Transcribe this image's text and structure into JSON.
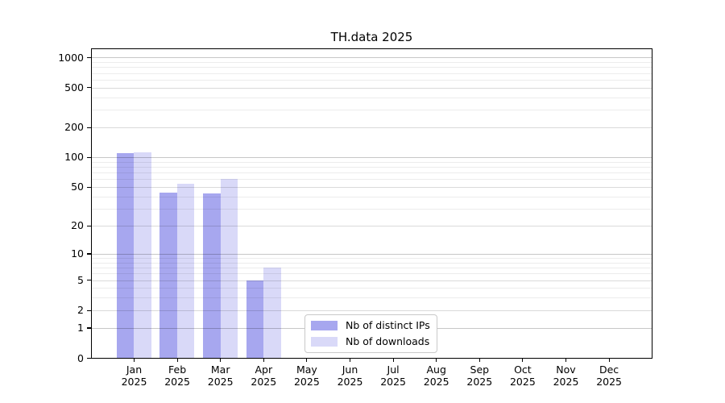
{
  "window": {
    "background": "#ffffff"
  },
  "chart_data": {
    "type": "bar",
    "title": "TH.data 2025",
    "x_categories": [
      "Jan",
      "Feb",
      "Mar",
      "Apr",
      "May",
      "Jun",
      "Jul",
      "Aug",
      "Sep",
      "Oct",
      "Nov",
      "Dec"
    ],
    "x_year_label": "2025",
    "series": [
      {
        "name": "Nb of distinct IPs",
        "color": "#a7a7ef",
        "values": [
          111,
          44,
          43,
          5,
          0,
          0,
          0,
          0,
          0,
          0,
          0,
          0
        ]
      },
      {
        "name": "Nb of downloads",
        "color": "#d9d9f8",
        "values": [
          112,
          54,
          60,
          7,
          0,
          0,
          0,
          0,
          0,
          0,
          0,
          0
        ]
      }
    ],
    "y_scale": "log10(value+1)",
    "y_tick_values": [
      0,
      1,
      2,
      5,
      10,
      20,
      50,
      100,
      200,
      500,
      1000
    ],
    "ylim": [
      0,
      1240
    ],
    "grid": {
      "horizontal": true,
      "minor_log_decades": true,
      "major_values": [
        1,
        10,
        100,
        1000
      ],
      "major_color": "#c8c8c8",
      "minor_color": "#ececec"
    },
    "legend": {
      "position": "inside-bottom-center",
      "border_color": "#c9c9c9",
      "background": "#ffffff"
    }
  }
}
